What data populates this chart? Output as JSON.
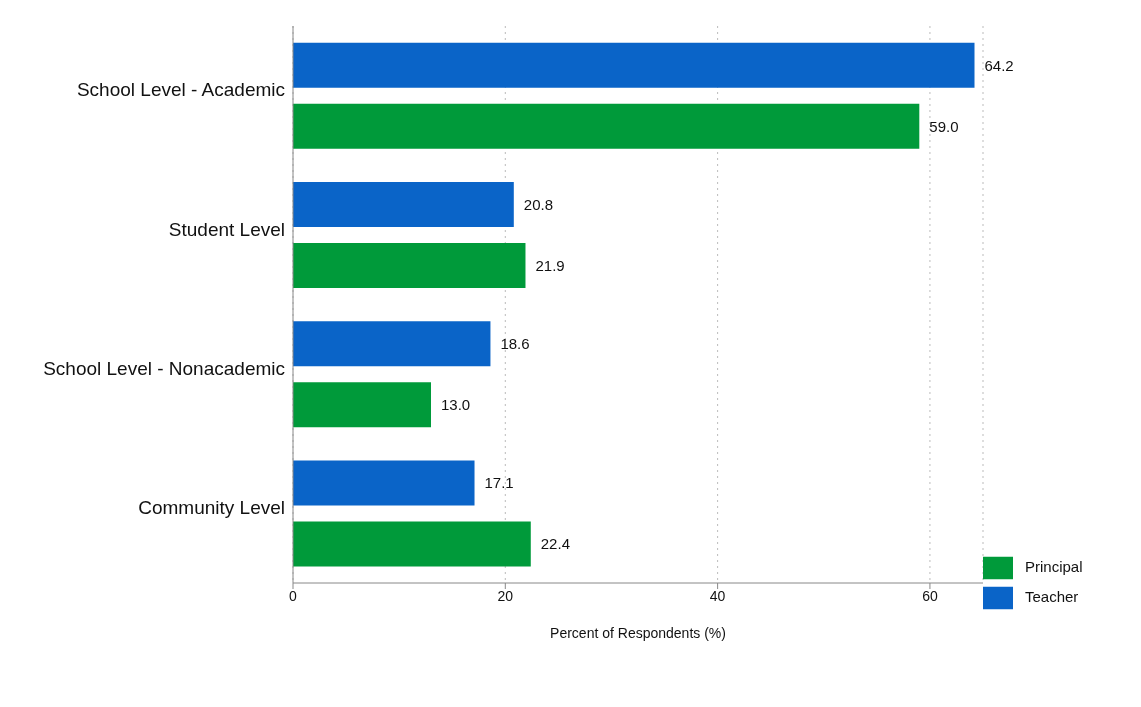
{
  "chart_data": {
    "type": "bar",
    "orientation": "horizontal",
    "categories": [
      "School Level - Academic",
      "Student Level",
      "School Level - Nonacademic",
      "Community Level"
    ],
    "series": [
      {
        "name": "Teacher",
        "color": "#0a64c8",
        "values": [
          64.2,
          20.8,
          18.6,
          17.1
        ],
        "value_labels": [
          "64.2",
          "20.8",
          "18.6",
          "17.1"
        ]
      },
      {
        "name": "Principal",
        "color": "#009a3a",
        "values": [
          59.0,
          21.9,
          13.0,
          22.4
        ],
        "value_labels": [
          "59.0",
          "21.9",
          "13.0",
          "22.4"
        ]
      }
    ],
    "xlabel": "Percent of Respondents (%)",
    "xlim": [
      0,
      65
    ],
    "xticks": [
      0,
      20,
      40,
      60
    ],
    "grid": "x",
    "legend": "bottom right"
  }
}
